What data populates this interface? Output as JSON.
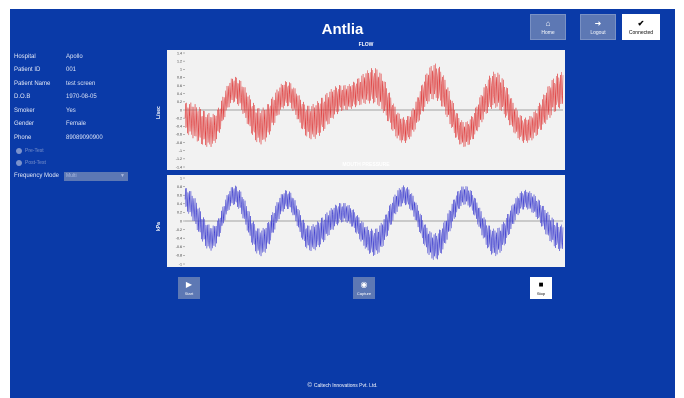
{
  "app": {
    "title": "Antlia"
  },
  "topbar": {
    "home_label": "Home",
    "home_icon": "home-icon",
    "logout_label": "Logout",
    "logout_icon": "logout-icon",
    "connected_label": "Connected",
    "connected_icon": "check-icon"
  },
  "patient": [
    {
      "label": "Hospital",
      "value": "Apollo"
    },
    {
      "label": "Patient ID",
      "value": "001"
    },
    {
      "label": "Patient Name",
      "value": "test screen"
    },
    {
      "label": "D.O.B",
      "value": "1970-08-05"
    },
    {
      "label": "Smoker",
      "value": "Yes"
    },
    {
      "label": "Gender",
      "value": "Female"
    },
    {
      "label": "Phone",
      "value": "89089090900"
    }
  ],
  "test_mode": {
    "pre_label": "Pre-Test",
    "post_label": "Post-Test"
  },
  "frequency": {
    "label": "Frequency Mode",
    "value": "Multi"
  },
  "chart_data": [
    {
      "type": "line",
      "title": "FLOW",
      "ylabel": "L/sec",
      "ylim": [
        -1.4,
        1.4
      ],
      "yticks": [
        1.4,
        1.2,
        1,
        0.8,
        0.6,
        0.4,
        0.2,
        0,
        -0.2,
        -0.4,
        -0.6,
        -0.8,
        -1,
        -1.2,
        -1.4
      ],
      "grid": false,
      "color": "#e04040",
      "series": [
        {
          "description_points": [
            {
              "x": 0.0,
              "y": -0.2
            },
            {
              "x": 0.07,
              "y": -0.5
            },
            {
              "x": 0.13,
              "y": 0.5
            },
            {
              "x": 0.2,
              "y": -0.4
            },
            {
              "x": 0.27,
              "y": 0.4
            },
            {
              "x": 0.33,
              "y": -0.3
            },
            {
              "x": 0.42,
              "y": 0.3
            },
            {
              "x": 0.5,
              "y": 0.6
            },
            {
              "x": 0.58,
              "y": -0.5
            },
            {
              "x": 0.66,
              "y": 0.7
            },
            {
              "x": 0.74,
              "y": -0.6
            },
            {
              "x": 0.82,
              "y": 0.5
            },
            {
              "x": 0.9,
              "y": -0.5
            },
            {
              "x": 1.0,
              "y": 0.5
            }
          ]
        }
      ]
    },
    {
      "type": "line",
      "title": "MOUTH PRESSURE",
      "ylabel": "kPa",
      "ylim": [
        -1,
        1
      ],
      "yticks": [
        1,
        0.8,
        0.6,
        0.4,
        0.2,
        0,
        -0.2,
        -0.4,
        -0.6,
        -0.8,
        -1
      ],
      "grid": false,
      "color": "#4040d0",
      "series": [
        {
          "description_points": [
            {
              "x": 0.0,
              "y": 0.5
            },
            {
              "x": 0.07,
              "y": -0.4
            },
            {
              "x": 0.13,
              "y": 0.6
            },
            {
              "x": 0.2,
              "y": -0.5
            },
            {
              "x": 0.27,
              "y": 0.5
            },
            {
              "x": 0.33,
              "y": -0.4
            },
            {
              "x": 0.42,
              "y": 0.2
            },
            {
              "x": 0.5,
              "y": -0.5
            },
            {
              "x": 0.58,
              "y": 0.6
            },
            {
              "x": 0.66,
              "y": -0.6
            },
            {
              "x": 0.74,
              "y": 0.6
            },
            {
              "x": 0.82,
              "y": -0.5
            },
            {
              "x": 0.9,
              "y": 0.5
            },
            {
              "x": 1.0,
              "y": -0.4
            }
          ]
        }
      ]
    }
  ],
  "controls": {
    "start_label": "Start",
    "start_icon": "play-icon",
    "capture_label": "Capture",
    "capture_icon": "camera-icon",
    "stop_label": "Stop",
    "stop_icon": "stop-icon"
  },
  "footer": {
    "text": "Caltech Innovations Pvt. Ltd."
  },
  "colors": {
    "background": "#0a3aa8",
    "button": "#5d78b4",
    "flow": "#e04040",
    "pressure": "#4040d0"
  }
}
